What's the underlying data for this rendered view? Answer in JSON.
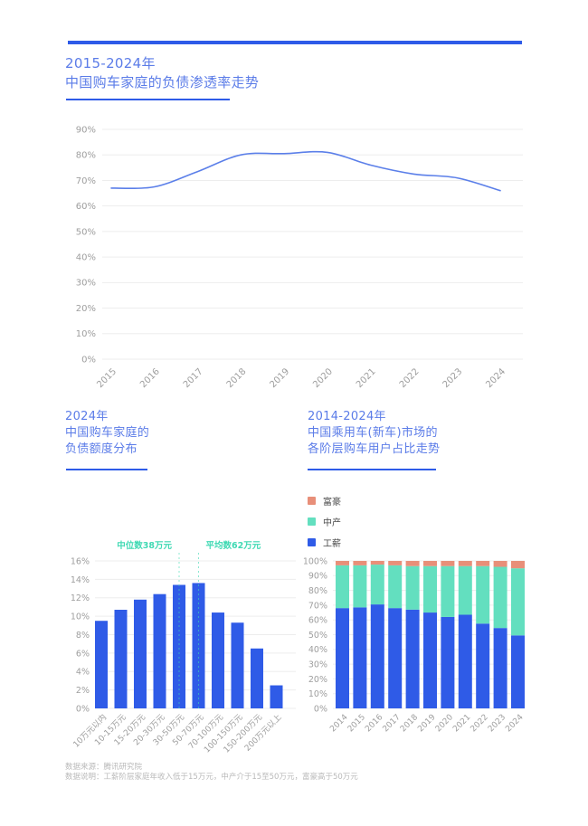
{
  "page": {
    "accent_color": "#2E5BE8",
    "title_color": "#5B7CE8",
    "background": "#FFFFFF",
    "grid_color": "#EDEDED",
    "axis_text_color": "#9E9E9E"
  },
  "header": {
    "title_line1": "2015-2024年",
    "title_line2": "中国购车家庭的负债渗透率走势"
  },
  "left_section": {
    "title_line1": "2024年",
    "title_line2": "中国购车家庭的",
    "title_line3": "负债额度分布"
  },
  "right_section": {
    "title_line1": "2014-2024年",
    "title_line2": "中国乘用车(新车)市场的",
    "title_line3": "各阶层购车用户占比走势",
    "legend": [
      {
        "label": "富豪",
        "color": "#E88F79"
      },
      {
        "label": "中产",
        "color": "#63DFBF"
      },
      {
        "label": "工薪",
        "color": "#2F5BE7"
      }
    ]
  },
  "footer": {
    "source_line": "数据来源：腾讯研究院",
    "note_line": "数据说明：工薪阶层家庭年收入低于15万元，中产介于15至50万元，富豪高于50万元"
  },
  "chart_data": [
    {
      "id": "debt-penetration-line",
      "type": "line",
      "title": "2015-2024年中国购车家庭的负债渗透率走势",
      "x": [
        "2015",
        "2016",
        "2017",
        "2018",
        "2019",
        "2020",
        "2021",
        "2022",
        "2023",
        "2024"
      ],
      "values": [
        67,
        67.5,
        73.5,
        80,
        80.5,
        81,
        76,
        72.5,
        71,
        66
      ],
      "unit": "%",
      "ylim": [
        0,
        90
      ],
      "ytick_step": 10,
      "grid": true,
      "legend_position": "none",
      "line_color": "#5B7FE9"
    },
    {
      "id": "debt-amount-bar",
      "type": "bar",
      "title": "2024年中国购车家庭的负债额度分布",
      "categories": [
        "10万元以内",
        "10-15万元",
        "15-20万元",
        "20-30万元",
        "30-50万元",
        "50-70万元",
        "70-100万元",
        "100-150万元",
        "150-200万元",
        "200万元以上"
      ],
      "values": [
        9.5,
        10.7,
        11.8,
        12.4,
        13.4,
        13.6,
        10.4,
        9.3,
        6.5,
        2.5
      ],
      "unit": "%",
      "ylim": [
        0,
        16
      ],
      "ytick_step": 2,
      "grid": true,
      "legend_position": "none",
      "bar_color": "#2F5BE7",
      "annotations": [
        {
          "label": "中位数38万元",
          "at_category": "30-50万元",
          "side": "left",
          "color": "#3FD9B3"
        },
        {
          "label": "平均数62万元",
          "at_category": "50-70万元",
          "side": "right",
          "color": "#3FD9B3"
        }
      ]
    },
    {
      "id": "buyer-class-stacked",
      "type": "stacked-bar",
      "title": "2014-2024年中国乘用车(新车)市场的各阶层购车用户占比走势",
      "categories": [
        "2014",
        "2015",
        "2016",
        "2017",
        "2018",
        "2019",
        "2020",
        "2021",
        "2022",
        "2023",
        "2024"
      ],
      "series": [
        {
          "name": "工薪",
          "color": "#2F5BE7",
          "values": [
            68,
            68.5,
            70.5,
            68,
            67,
            65,
            62,
            63.5,
            57.5,
            54.5,
            49.5
          ]
        },
        {
          "name": "中产",
          "color": "#63DFBF",
          "values": [
            29,
            28.5,
            27,
            29,
            29.5,
            31.5,
            34.5,
            33,
            39,
            41.5,
            45.5
          ]
        },
        {
          "name": "富豪",
          "color": "#E88F79",
          "values": [
            3,
            3,
            2.5,
            3,
            3.5,
            3.5,
            3.5,
            3.5,
            3.5,
            4,
            5
          ]
        }
      ],
      "unit": "%",
      "ylim": [
        0,
        100
      ],
      "ytick_step": 10,
      "grid": true,
      "legend_position": "top-left"
    }
  ]
}
